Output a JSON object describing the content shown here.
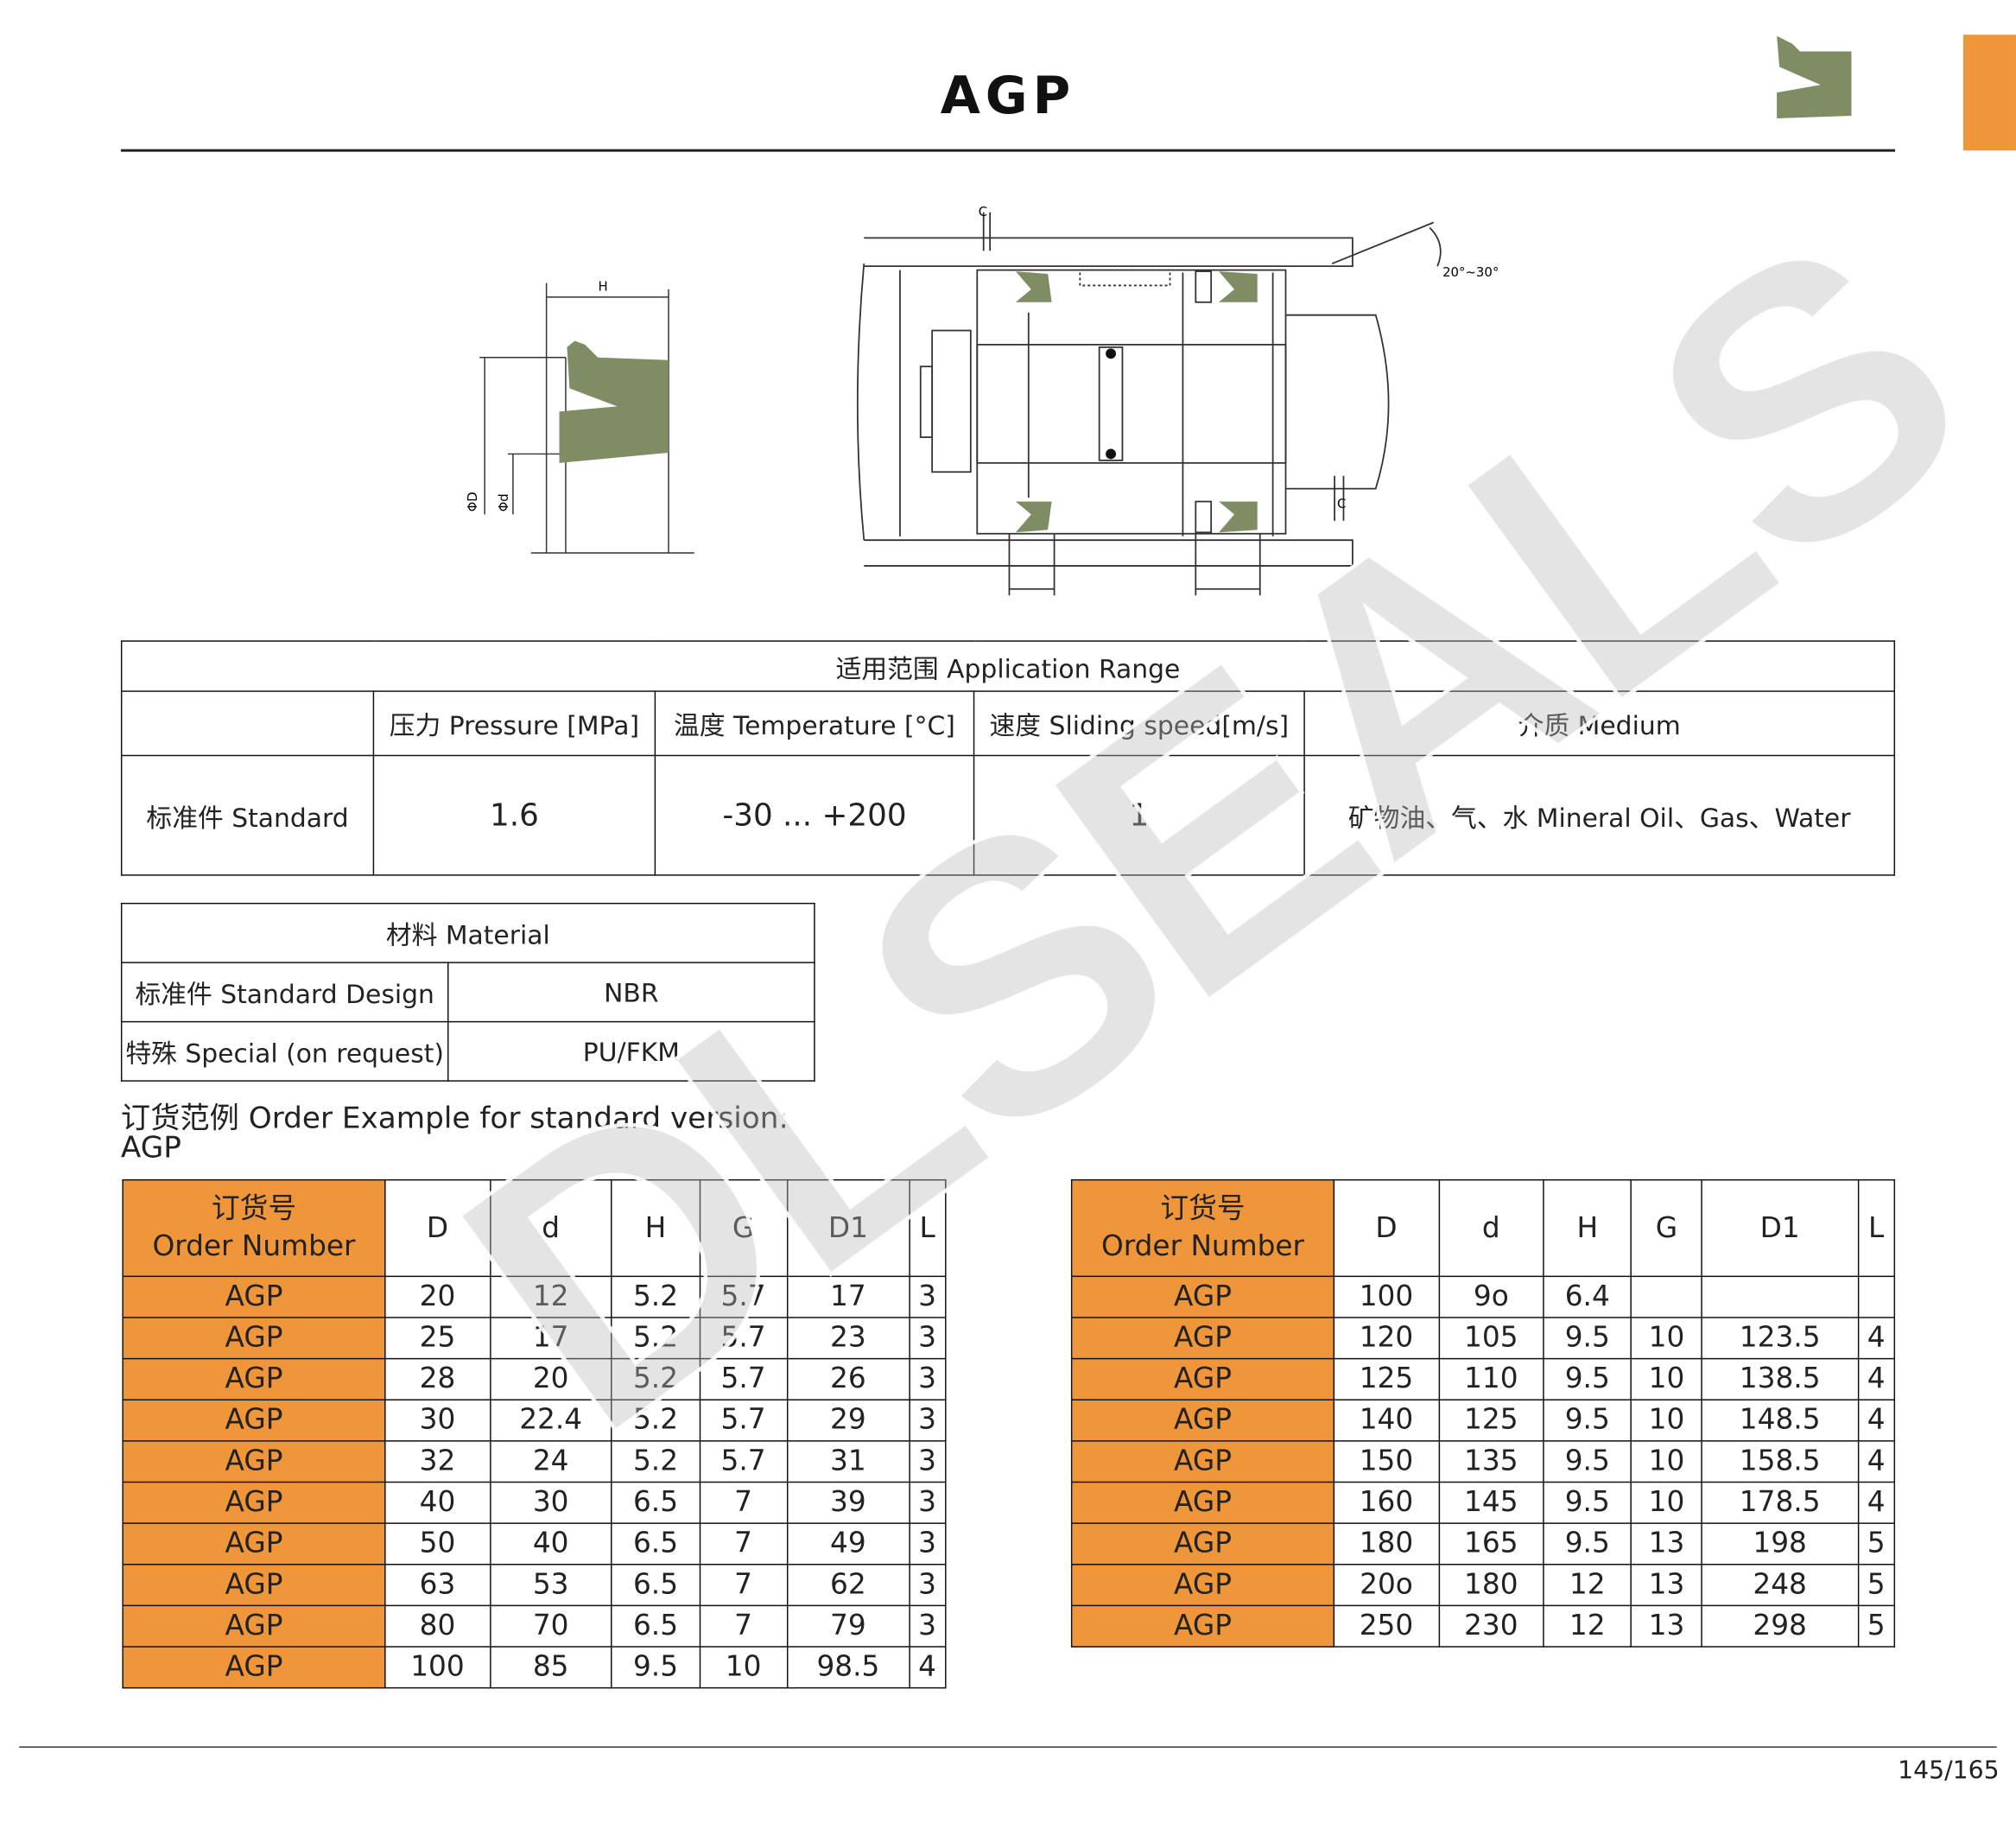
{
  "title": "AGP",
  "colors": {
    "accent": "#ef963b",
    "seal": "#7f8c64"
  },
  "drawing": {
    "h_label": "H",
    "phiD_label": "ΦD",
    "phid_label": "Φd",
    "c_label": "C",
    "angle_label": "20°~30°"
  },
  "watermark": "DLSEALS",
  "application": {
    "heading": "适用范围 Application Range",
    "columns": [
      "",
      "压力 Pressure [MPa]",
      "温度 Temperature  [°C]",
      "速度 Sliding speed[m/s]",
      "介质 Medium"
    ],
    "row": [
      "标准件 Standard",
      "1.6",
      "-30 ... +200",
      "1",
      "矿物油、气、水 Mineral Oil、Gas、Water"
    ]
  },
  "material": {
    "heading": "材料 Material",
    "rows": [
      [
        "标准件 Standard Design",
        "NBR"
      ],
      [
        "特殊 Special (on request)",
        "PU/FKM"
      ]
    ]
  },
  "order_example": {
    "line1": "订货范例 Order Example for standard version:",
    "line2": "AGP"
  },
  "order_tables": {
    "header": {
      "order_cn": "订货号",
      "order_en": "Order Number",
      "cols": [
        "D",
        "d",
        "H",
        "G",
        "D1",
        "L"
      ]
    },
    "left": [
      [
        "AGP",
        "20",
        "12",
        "5.2",
        "5.7",
        "17",
        "3"
      ],
      [
        "AGP",
        "25",
        "17",
        "5.2",
        "5.7",
        "23",
        "3"
      ],
      [
        "AGP",
        "28",
        "20",
        "5.2",
        "5.7",
        "26",
        "3"
      ],
      [
        "AGP",
        "30",
        "22.4",
        "5.2",
        "5.7",
        "29",
        "3"
      ],
      [
        "AGP",
        "32",
        "24",
        "5.2",
        "5.7",
        "31",
        "3"
      ],
      [
        "AGP",
        "40",
        "30",
        "6.5",
        "7",
        "39",
        "3"
      ],
      [
        "AGP",
        "50",
        "40",
        "6.5",
        "7",
        "49",
        "3"
      ],
      [
        "AGP",
        "63",
        "53",
        "6.5",
        "7",
        "62",
        "3"
      ],
      [
        "AGP",
        "80",
        "70",
        "6.5",
        "7",
        "79",
        "3"
      ],
      [
        "AGP",
        "100",
        "85",
        "9.5",
        "10",
        "98.5",
        "4"
      ]
    ],
    "right": [
      [
        "AGP",
        "100",
        "9o",
        "6.4",
        "",
        "",
        ""
      ],
      [
        "AGP",
        "120",
        "105",
        "9.5",
        "10",
        "123.5",
        "4"
      ],
      [
        "AGP",
        "125",
        "110",
        "9.5",
        "10",
        "138.5",
        "4"
      ],
      [
        "AGP",
        "140",
        "125",
        "9.5",
        "10",
        "148.5",
        "4"
      ],
      [
        "AGP",
        "150",
        "135",
        "9.5",
        "10",
        "158.5",
        "4"
      ],
      [
        "AGP",
        "160",
        "145",
        "9.5",
        "10",
        "178.5",
        "4"
      ],
      [
        "AGP",
        "180",
        "165",
        "9.5",
        "13",
        "198",
        "5"
      ],
      [
        "AGP",
        "20o",
        "180",
        "12",
        "13",
        "248",
        "5"
      ],
      [
        "AGP",
        "250",
        "230",
        "12",
        "13",
        "298",
        "5"
      ]
    ]
  },
  "page_number": "145/165"
}
